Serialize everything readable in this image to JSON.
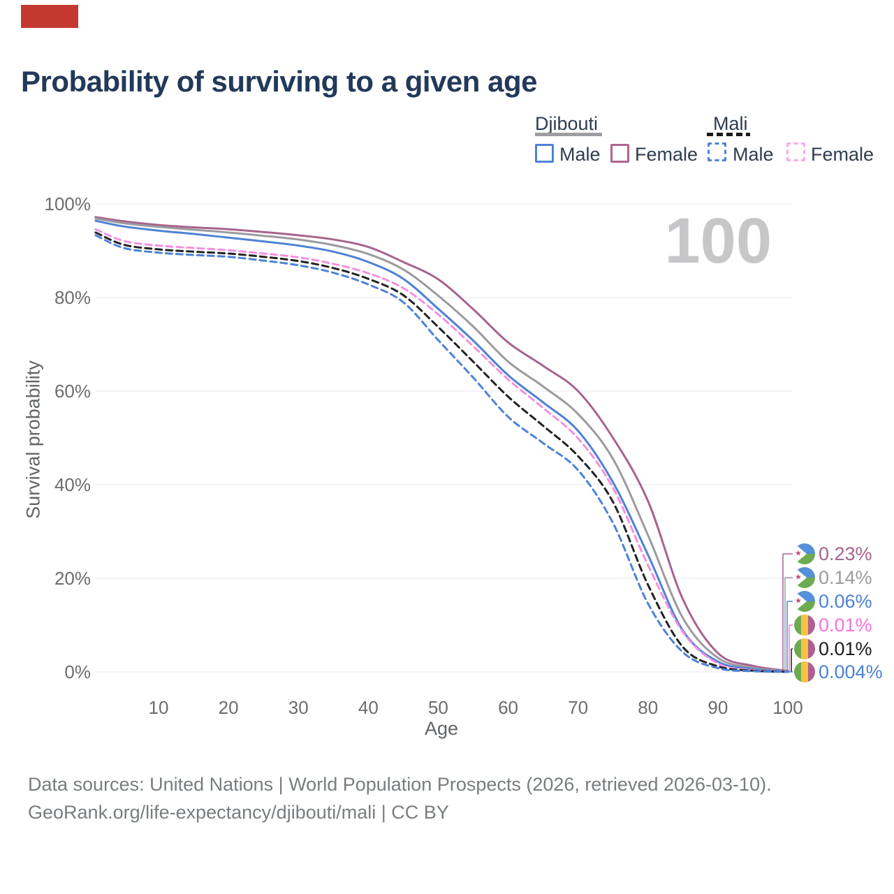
{
  "title": "Probability of surviving to a given age",
  "annotation_rect": {
    "color": "#c4392f"
  },
  "watermark": "100",
  "legend": {
    "groups": [
      {
        "country": "Djibouti",
        "line_style": "solid",
        "underline_color": "#9e9ea2",
        "items": [
          {
            "label": "Male",
            "color": "#4d82d6"
          },
          {
            "label": "Female",
            "color": "#b0648f"
          }
        ]
      },
      {
        "country": "Mali",
        "line_style": "dashed",
        "underline_color": "#1a1a1a",
        "items": [
          {
            "label": "Male",
            "color": "#4d82d6"
          },
          {
            "label": "Female",
            "color": "#f9a8e8"
          }
        ]
      }
    ]
  },
  "chart_data": {
    "type": "line",
    "title": "Probability of surviving to a given age",
    "xlabel": "Age",
    "ylabel": "Survival probability",
    "xlim": [
      1,
      100
    ],
    "ylim": [
      0,
      100
    ],
    "grid": "horizontal",
    "x_ticks": [
      10,
      20,
      30,
      40,
      50,
      60,
      70,
      80,
      90,
      100
    ],
    "y_ticks": {
      "values": [
        100,
        80,
        60,
        40,
        20,
        0
      ],
      "labels": [
        "100%",
        "80%",
        "60%",
        "40%",
        "20%",
        "0%"
      ]
    },
    "x": [
      1,
      5,
      10,
      15,
      20,
      25,
      30,
      35,
      40,
      45,
      50,
      55,
      60,
      65,
      70,
      75,
      80,
      85,
      90,
      95,
      100
    ],
    "series": [
      {
        "id": "djibouti-female",
        "name": "Djibouti Female",
        "country": "Djibouti",
        "sex": "Female",
        "color": "#a8638c",
        "dash": false,
        "end_label": "0.23%",
        "end_label_color": "#a8638c",
        "values": [
          97.2,
          96.3,
          95.5,
          95.0,
          94.6,
          94.0,
          93.3,
          92.4,
          90.8,
          87.6,
          83.9,
          77.5,
          70.4,
          65.4,
          60.0,
          50.0,
          36.5,
          15.5,
          4.0,
          1.3,
          0.23
        ]
      },
      {
        "id": "djibouti-both",
        "name": "Djibouti (both sexes)",
        "country": "Djibouti",
        "sex": "Both",
        "color": "#9b9b9f",
        "dash": false,
        "end_label": "0.14%",
        "end_label_color": "#9b9b9f",
        "values": [
          96.9,
          95.9,
          95.1,
          94.5,
          93.9,
          93.2,
          92.4,
          91.2,
          89.3,
          86.0,
          80.4,
          73.8,
          66.3,
          61.0,
          55.1,
          45.5,
          29.2,
          11.5,
          3.0,
          0.9,
          0.14
        ]
      },
      {
        "id": "djibouti-male",
        "name": "Djibouti Male",
        "country": "Djibouti",
        "sex": "Male",
        "color": "#4d82d6",
        "dash": false,
        "end_label": "0.06%",
        "end_label_color": "#4d82d6",
        "values": [
          96.4,
          95.2,
          94.3,
          93.6,
          92.8,
          92.0,
          91.1,
          89.8,
          87.6,
          84.0,
          77.6,
          70.8,
          63.4,
          57.6,
          51.5,
          40.5,
          25.0,
          8.8,
          2.2,
          0.6,
          0.06
        ]
      },
      {
        "id": "mali-female",
        "name": "Mali Female",
        "country": "Mali",
        "sex": "Female",
        "color": "#f58fdf",
        "dash": true,
        "end_label": "0.01%",
        "end_label_color": "#f873de",
        "values": [
          94.6,
          92.1,
          91.1,
          90.6,
          90.1,
          89.4,
          88.6,
          87.2,
          85.2,
          82.0,
          76.4,
          69.6,
          62.5,
          56.4,
          49.9,
          39.3,
          22.8,
          8.5,
          1.8,
          0.4,
          0.01
        ]
      },
      {
        "id": "mali-both",
        "name": "Mali (both sexes)",
        "country": "Mali",
        "sex": "Both",
        "color": "#222222",
        "dash": true,
        "end_label": "0.01%",
        "end_label_color": "#1c1c1c",
        "values": [
          93.9,
          91.3,
          90.3,
          89.8,
          89.4,
          88.7,
          87.8,
          86.3,
          84.0,
          80.5,
          73.7,
          66.3,
          58.8,
          52.6,
          46.1,
          36.3,
          18.6,
          5.3,
          1.2,
          0.25,
          0.01
        ]
      },
      {
        "id": "mali-male",
        "name": "Mali Male",
        "country": "Mali",
        "sex": "Male",
        "color": "#4d82d6",
        "dash": true,
        "end_label": "0.004%",
        "end_label_color": "#4d82d6",
        "values": [
          93.3,
          90.6,
          89.6,
          89.1,
          88.7,
          87.9,
          86.9,
          85.3,
          82.8,
          79.0,
          70.9,
          62.9,
          54.5,
          48.9,
          43.1,
          31.8,
          14.6,
          4.2,
          0.8,
          0.15,
          0.004
        ]
      }
    ]
  },
  "footer": {
    "line1": "Data sources: United Nations | World Population Prospects (2026, retrieved 2026-03-10).",
    "line2": "GeoRank.org/life-expectancy/djibouti/mali | CC BY"
  }
}
